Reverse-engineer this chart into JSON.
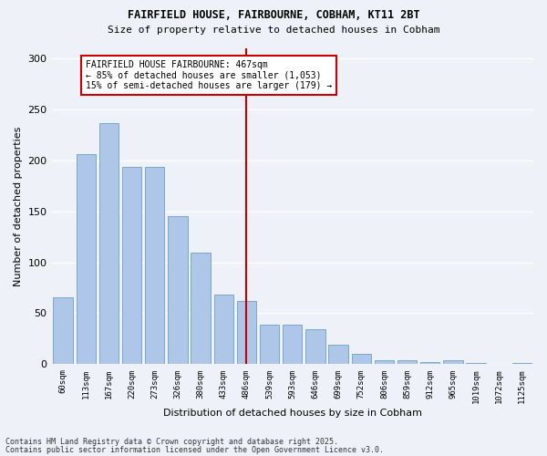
{
  "title1": "FAIRFIELD HOUSE, FAIRBOURNE, COBHAM, KT11 2BT",
  "title2": "Size of property relative to detached houses in Cobham",
  "xlabel": "Distribution of detached houses by size in Cobham",
  "ylabel": "Number of detached properties",
  "categories": [
    "60sqm",
    "113sqm",
    "167sqm",
    "220sqm",
    "273sqm",
    "326sqm",
    "380sqm",
    "433sqm",
    "486sqm",
    "539sqm",
    "593sqm",
    "646sqm",
    "699sqm",
    "752sqm",
    "806sqm",
    "859sqm",
    "912sqm",
    "965sqm",
    "1019sqm",
    "1072sqm",
    "1125sqm"
  ],
  "values": [
    66,
    206,
    236,
    193,
    193,
    145,
    109,
    68,
    62,
    39,
    39,
    34,
    19,
    10,
    4,
    4,
    2,
    4,
    1,
    0,
    1
  ],
  "bar_color": "#aec6e8",
  "bar_edge_color": "#6a9fc8",
  "vline_x_index": 8,
  "vline_color": "#cc0000",
  "annotation_line1": "FAIRFIELD HOUSE FAIRBOURNE: 467sqm",
  "annotation_line2": "← 85% of detached houses are smaller (1,053)",
  "annotation_line3": "15% of semi-detached houses are larger (179) →",
  "annotation_box_color": "#ffffff",
  "annotation_box_edge": "#cc0000",
  "footnote1": "Contains HM Land Registry data © Crown copyright and database right 2025.",
  "footnote2": "Contains public sector information licensed under the Open Government Licence v3.0.",
  "bg_color": "#eef2f8",
  "grid_color": "#ffffff",
  "ylim": [
    0,
    310
  ],
  "yticks": [
    0,
    50,
    100,
    150,
    200,
    250,
    300
  ]
}
